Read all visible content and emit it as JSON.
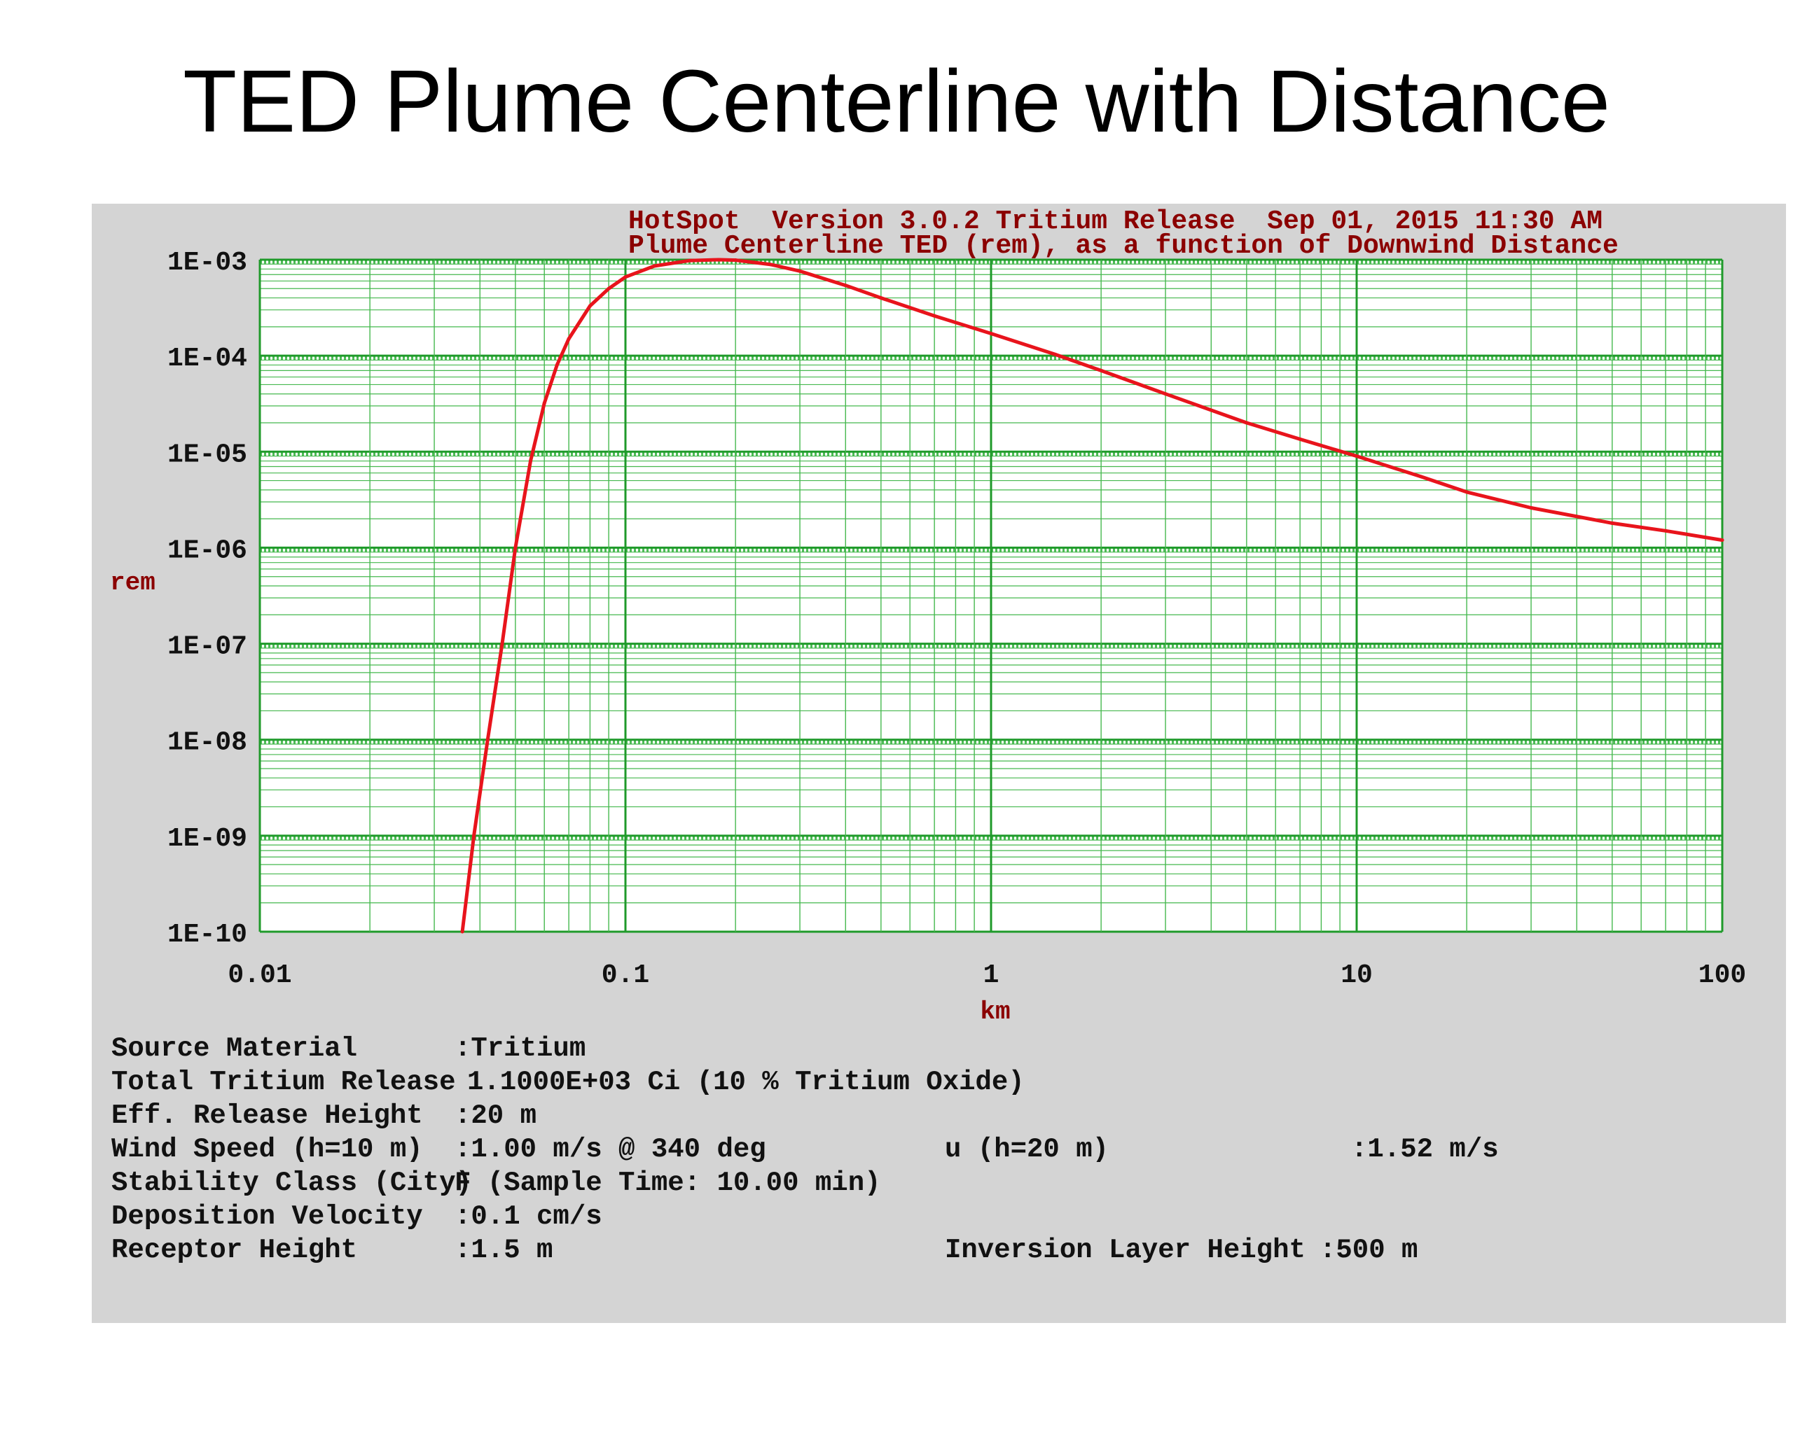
{
  "slide": {
    "title": "TED Plume Centerline with Distance"
  },
  "colors": {
    "panel_bg": "#d4d4d4",
    "plot_bg": "#ffffff",
    "grid_major": "#1f9a2a",
    "grid_minor": "#45b84e",
    "curve": "#e8141c",
    "header_text": "#8b0000",
    "axis_text": "#111111"
  },
  "chart_data": {
    "type": "line",
    "header_line1": "HotSpot  Version 3.0.2 Tritium Release  Sep 01, 2015 11:30 AM",
    "header_line2": "Plume Centerline TED (rem), as a function of Downwind Distance",
    "xlabel": "km",
    "ylabel": "rem",
    "xscale": "log",
    "yscale": "log",
    "xlim": [
      0.01,
      100
    ],
    "ylim": [
      1e-10,
      0.001
    ],
    "grid": true,
    "legend": "none",
    "x_ticks": [
      "0.01",
      "0.1",
      "1",
      "10",
      "100"
    ],
    "y_ticks": [
      "1E-03",
      "1E-04",
      "1E-05",
      "1E-06",
      "1E-07",
      "1E-08",
      "1E-09",
      "1E-10"
    ],
    "series": [
      {
        "x": [
          0.0358,
          0.0385,
          0.042,
          0.046,
          0.05,
          0.055,
          0.06,
          0.065,
          0.07,
          0.08,
          0.09,
          0.1,
          0.12,
          0.15,
          0.18,
          0.2,
          0.25,
          0.3,
          0.4,
          0.5,
          0.7,
          1,
          1.5,
          2,
          3,
          5,
          7,
          10,
          15,
          20,
          30,
          50,
          70,
          100
        ],
        "y": [
          1e-10,
          1e-09,
          1e-08,
          1e-07,
          1e-06,
          8e-06,
          3.2e-05,
          8e-05,
          0.00015,
          0.00033,
          0.0005,
          0.00066,
          0.00086,
          0.00098,
          0.001,
          0.00099,
          0.00089,
          0.00076,
          0.00054,
          0.0004,
          0.00026,
          0.00017,
          0.000103,
          7e-05,
          4e-05,
          2e-05,
          1.35e-05,
          9e-06,
          5.5e-06,
          3.8e-06,
          2.6e-06,
          1.8e-06,
          1.5e-06,
          1.2e-06
        ]
      }
    ]
  },
  "info": {
    "source_material_label": "Source Material",
    "source_material_value": ":Tritium",
    "total_release_label": "Total Tritium Release",
    "total_release_value": "1.1000E+03 Ci (10 % Tritium Oxide)",
    "release_height_label": "Eff. Release Height",
    "release_height_value": ":20 m",
    "wind_speed_label": "Wind Speed (h=10 m)",
    "wind_speed_value": ":1.00 m/s @ 340 deg",
    "u_label": "u (h=20 m)",
    "u_value": ":1.52 m/s",
    "stability_label": "Stability Class (City)",
    "stability_value": "F (Sample Time: 10.00 min)",
    "deposition_label": "Deposition Velocity",
    "deposition_value": ":0.1 cm/s",
    "receptor_label": "Receptor Height",
    "receptor_value": ":1.5 m",
    "inversion_label": "Inversion Layer Height",
    "inversion_value": ":500 m"
  }
}
